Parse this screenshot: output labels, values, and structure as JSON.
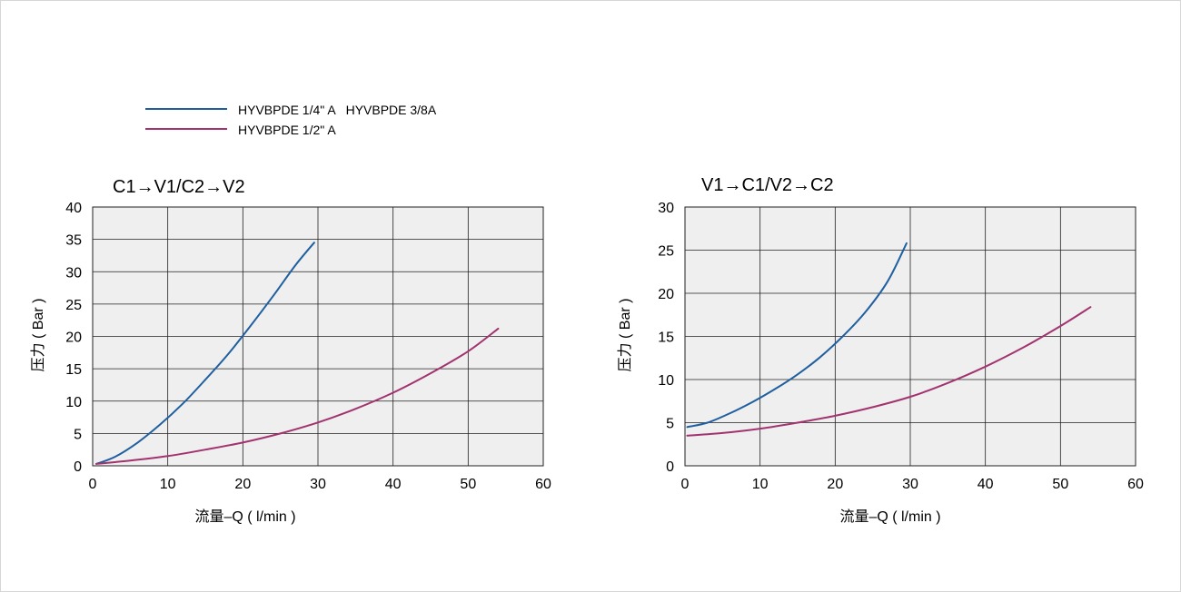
{
  "legend": {
    "items": [
      {
        "label": "HYVBPDE 1/4\" A   HYVBPDE 3/8A",
        "color": "#1f5fa0"
      },
      {
        "label": "HYVBPDE 1/2\" A",
        "color": "#a2336f"
      }
    ]
  },
  "chart_data": [
    {
      "type": "line",
      "title": "C1→V1/C2→V2",
      "xlabel": "流量–Q ( l/min )",
      "ylabel": "压力 ( Bar )",
      "xlim": [
        0,
        60
      ],
      "ylim": [
        0,
        40
      ],
      "xticks": [
        0,
        10,
        20,
        30,
        40,
        50,
        60
      ],
      "yticks": [
        0,
        5,
        10,
        15,
        20,
        25,
        30,
        35,
        40
      ],
      "grid": true,
      "background": "#efefef",
      "series": [
        {
          "name": "HYVBPDE 1/4\" A   HYVBPDE 3/8A",
          "color": "#1f5fa0",
          "x": [
            0.5,
            3,
            6,
            9,
            12,
            15,
            18,
            21,
            24,
            27,
            29.5
          ],
          "y": [
            0.3,
            1.4,
            3.6,
            6.4,
            9.6,
            13.3,
            17.2,
            21.6,
            26.2,
            31.0,
            34.5
          ]
        },
        {
          "name": "HYVBPDE 1/2\" A",
          "color": "#a2336f",
          "x": [
            0.5,
            5,
            10,
            15,
            20,
            25,
            30,
            35,
            40,
            45,
            50,
            54
          ],
          "y": [
            0.3,
            0.8,
            1.5,
            2.5,
            3.6,
            5.0,
            6.7,
            8.8,
            11.3,
            14.3,
            17.7,
            21.2
          ]
        }
      ]
    },
    {
      "type": "line",
      "title": "V1→C1/V2→C2",
      "xlabel": "流量–Q ( l/min )",
      "ylabel": "压力 ( Bar )",
      "xlim": [
        0,
        60
      ],
      "ylim": [
        0,
        30
      ],
      "xticks": [
        0,
        10,
        20,
        30,
        40,
        50,
        60
      ],
      "yticks": [
        0,
        5,
        10,
        15,
        20,
        25,
        30
      ],
      "grid": true,
      "background": "#efefef",
      "series": [
        {
          "name": "HYVBPDE 1/4\" A   HYVBPDE 3/8A",
          "color": "#1f5fa0",
          "x": [
            0.3,
            3,
            6,
            9,
            12,
            15,
            18,
            21,
            24,
            27,
            29.5
          ],
          "y": [
            4.5,
            5.0,
            6.1,
            7.4,
            8.9,
            10.6,
            12.6,
            15.0,
            17.8,
            21.4,
            25.8
          ]
        },
        {
          "name": "HYVBPDE 1/2\" A",
          "color": "#a2336f",
          "x": [
            0.3,
            5,
            10,
            15,
            20,
            25,
            30,
            35,
            40,
            45,
            50,
            54
          ],
          "y": [
            3.5,
            3.8,
            4.3,
            5.0,
            5.8,
            6.8,
            8.0,
            9.6,
            11.5,
            13.7,
            16.2,
            18.4
          ]
        }
      ]
    }
  ]
}
